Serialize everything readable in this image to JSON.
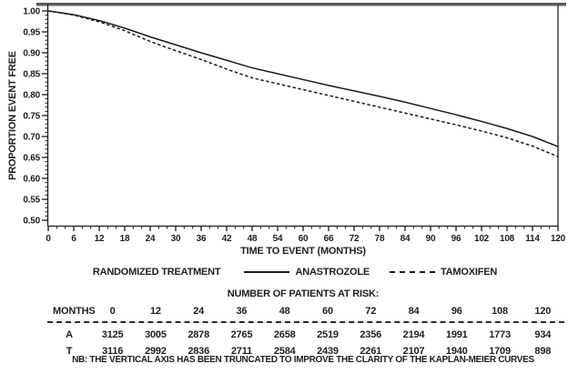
{
  "chart_data": {
    "type": "line",
    "title": "",
    "xlabel": "TIME TO EVENT (MONTHS)",
    "ylabel": "PROPORTION EVENT FREE",
    "xlim": [
      0,
      120
    ],
    "ylim": [
      0.5,
      1.0
    ],
    "grid": false,
    "legend_position": "bottom",
    "x_ticks": [
      0,
      6,
      12,
      18,
      24,
      30,
      36,
      42,
      48,
      54,
      60,
      66,
      72,
      78,
      84,
      90,
      96,
      102,
      108,
      114,
      120
    ],
    "x_minor_step": 2,
    "y_tick_labels": [
      "1.00",
      "0.95",
      "0.90",
      "0.85",
      "0.80",
      "0.75",
      "0.70",
      "0.65",
      "0.60",
      "0.55",
      "0.50"
    ],
    "y_minor_step": 0.01,
    "x": [
      0,
      6,
      12,
      18,
      24,
      30,
      36,
      42,
      48,
      54,
      60,
      66,
      72,
      78,
      84,
      90,
      96,
      102,
      108,
      114,
      120
    ],
    "series": [
      {
        "name": "ANASTROZOLE",
        "line_style": "solid",
        "values": [
          1.0,
          0.991,
          0.977,
          0.959,
          0.938,
          0.919,
          0.9,
          0.882,
          0.864,
          0.85,
          0.836,
          0.822,
          0.809,
          0.796,
          0.782,
          0.767,
          0.752,
          0.736,
          0.719,
          0.7,
          0.676
        ]
      },
      {
        "name": "TAMOXIFEN",
        "line_style": "dashed",
        "values": [
          1.0,
          0.99,
          0.974,
          0.953,
          0.927,
          0.905,
          0.884,
          0.861,
          0.84,
          0.826,
          0.812,
          0.798,
          0.784,
          0.77,
          0.756,
          0.742,
          0.728,
          0.713,
          0.697,
          0.677,
          0.652
        ]
      }
    ]
  },
  "legend": {
    "title": "RANDOMIZED TREATMENT",
    "items": [
      {
        "label": "ANASTROZOLE",
        "line_style": "solid"
      },
      {
        "label": "TAMOXIFEN",
        "line_style": "dashed"
      }
    ]
  },
  "risk_table": {
    "title": "NUMBER OF PATIENTS AT RISK:",
    "months_header": "MONTHS",
    "months": [
      "0",
      "12",
      "24",
      "36",
      "48",
      "60",
      "72",
      "84",
      "96",
      "108",
      "120"
    ],
    "rows": [
      {
        "label": "A",
        "values": [
          "3125",
          "3005",
          "2878",
          "2765",
          "2658",
          "2519",
          "2356",
          "2194",
          "1991",
          "1773",
          "934"
        ]
      },
      {
        "label": "T",
        "values": [
          "3116",
          "2992",
          "2836",
          "2711",
          "2584",
          "2439",
          "2261",
          "2107",
          "1940",
          "1709",
          "898"
        ]
      }
    ]
  },
  "footnote": "NB: THE VERTICAL AXIS HAS BEEN TRUNCATED TO IMPROVE THE CLARITY OF THE KAPLAN-MEIER CURVES",
  "colors": {
    "curve": "#1a1a1a",
    "text": "#1f1f1f",
    "top_border": "#59595c",
    "background": "#ffffff"
  }
}
